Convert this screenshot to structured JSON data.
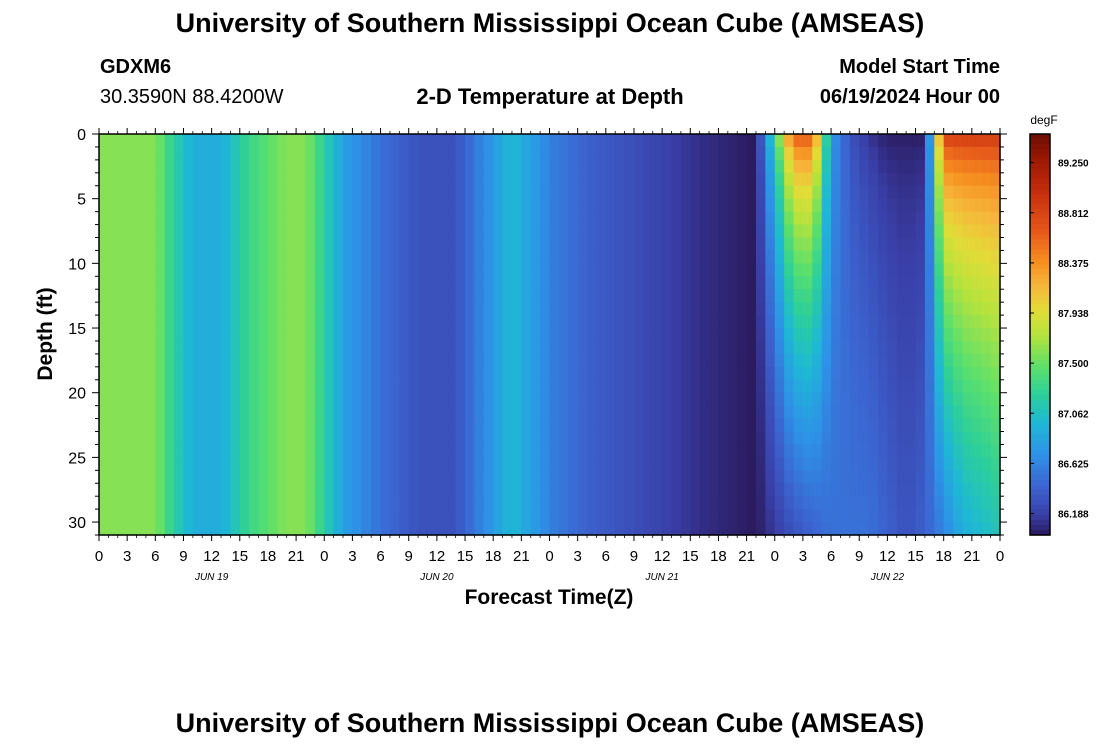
{
  "page": {
    "title_top": "University of Southern Mississippi Ocean Cube (AMSEAS)",
    "title_bottom": "University of Southern Mississippi Ocean Cube (AMSEAS)",
    "station": "GDXM6",
    "coords": "30.3590N  88.4200W",
    "chart_title": "2-D Temperature at Depth",
    "model_start_label": "Model Start Time",
    "model_start_value": "06/19/2024 Hour 00"
  },
  "chart_data": {
    "type": "heatmap",
    "title": "2-D Temperature at Depth",
    "xlabel": "Forecast Time(Z)",
    "ylabel": "Depth (ft)",
    "x_unit": "hours since 06/19/2024 00Z",
    "x_range": [
      0,
      96
    ],
    "y_range": [
      0,
      31
    ],
    "y_ticks": [
      "0",
      "5",
      "10",
      "15",
      "20",
      "25",
      "30"
    ],
    "x_tick_labels": [
      "0",
      "3",
      "6",
      "9",
      "12",
      "15",
      "18",
      "21",
      "0",
      "3",
      "6",
      "9",
      "12",
      "15",
      "18",
      "21",
      "0",
      "3",
      "6",
      "9",
      "12",
      "15",
      "18",
      "21",
      "0",
      "3",
      "6",
      "9",
      "12",
      "15",
      "18",
      "21",
      "0"
    ],
    "date_labels": [
      "JUN 19",
      "JUN 20",
      "JUN 21",
      "JUN 22"
    ],
    "colorbar": {
      "unit": "degF",
      "min": 86.0,
      "max": 89.5,
      "ticks": [
        "89.250",
        "88.812",
        "88.375",
        "87.938",
        "87.500",
        "87.062",
        "86.625",
        "86.188"
      ],
      "tick_values": [
        89.25,
        88.8125,
        88.375,
        87.9375,
        87.5,
        87.0625,
        86.625,
        86.1875
      ]
    },
    "surface_temperature_profile": {
      "hours": [
        0,
        6,
        8,
        10,
        13,
        16,
        20,
        22,
        24,
        26,
        30,
        34,
        38,
        44,
        48,
        52,
        56,
        60,
        64,
        70,
        74,
        76,
        78,
        80,
        82,
        84,
        86,
        88,
        90,
        92,
        96
      ],
      "temps_degF": [
        87.6,
        87.6,
        87.2,
        86.9,
        86.9,
        87.3,
        87.6,
        87.6,
        87.2,
        86.8,
        86.5,
        86.3,
        86.3,
        87.0,
        86.6,
        86.4,
        86.3,
        86.2,
        86.1,
        86.0,
        88.8,
        88.8,
        86.8,
        86.3,
        86.1,
        86.0,
        86.0,
        86.0,
        89.0,
        89.0,
        89.0
      ]
    },
    "bottom_temperature_profile": {
      "hours": [
        0,
        6,
        8,
        10,
        13,
        16,
        20,
        22,
        24,
        26,
        30,
        34,
        38,
        44,
        48,
        52,
        56,
        60,
        64,
        70,
        74,
        76,
        78,
        80,
        82,
        84,
        86,
        88,
        90,
        92,
        96
      ],
      "temps_degF": [
        87.6,
        87.6,
        87.2,
        86.9,
        86.9,
        87.3,
        87.6,
        87.6,
        87.2,
        86.8,
        86.5,
        86.3,
        86.3,
        87.0,
        86.6,
        86.4,
        86.3,
        86.2,
        86.1,
        86.0,
        86.3,
        86.4,
        86.5,
        86.5,
        86.5,
        86.4,
        86.3,
        86.4,
        86.6,
        86.9,
        87.1
      ]
    }
  }
}
